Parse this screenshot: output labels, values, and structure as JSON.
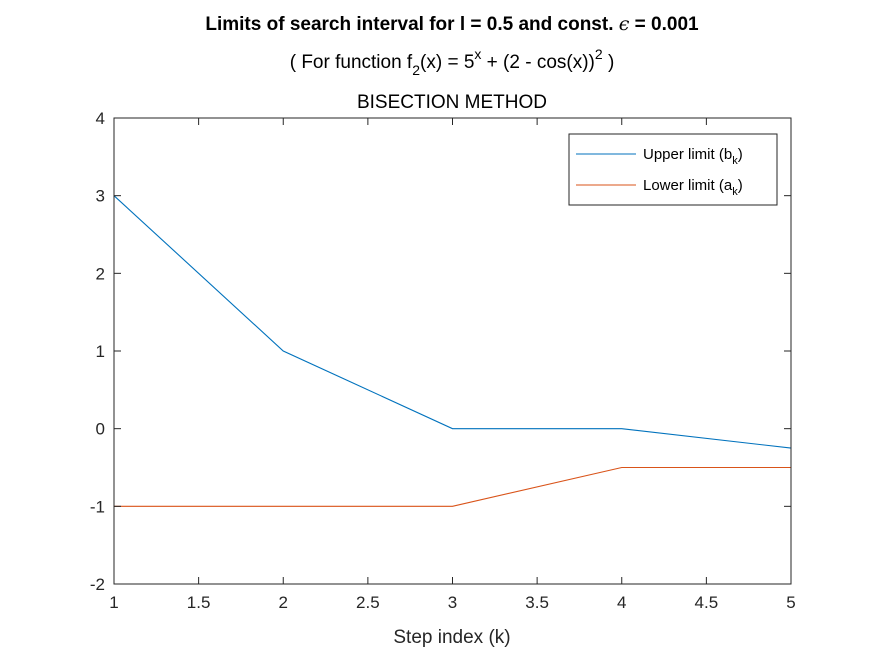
{
  "chart_data": {
    "type": "line",
    "title": {
      "line1_prefix": "Limits of search interval for l = 0.5 and const. ",
      "line1_symbol": "ϵ",
      "line1_suffix": " = 0.001",
      "line2_parts": {
        "open": "( For function f",
        "sub_2": "2",
        "mid1": "(x) = 5",
        "sup_x": "x",
        "mid2": " + (2 - cos(x))",
        "sup_2": "2",
        "close": " )"
      },
      "line3": "BISECTION METHOD"
    },
    "xlabel": "Step index (k)",
    "ylabel": "",
    "xlim": [
      1,
      5
    ],
    "ylim": [
      -2,
      4
    ],
    "xticks": [
      "1",
      "1.5",
      "2",
      "2.5",
      "3",
      "3.5",
      "4",
      "4.5",
      "5"
    ],
    "yticks": [
      "-2",
      "-1",
      "0",
      "1",
      "2",
      "3",
      "4"
    ],
    "grid": false,
    "legend_position": "top-right",
    "x": [
      1,
      2,
      3,
      4,
      5
    ],
    "series": [
      {
        "name": "Upper limit (b_k)",
        "legend_text": "Upper limit (b",
        "legend_sub": "k",
        "legend_close": ")",
        "color": "#0072BD",
        "values": [
          3,
          1,
          0,
          0,
          -0.25
        ]
      },
      {
        "name": "Lower limit (a_k)",
        "legend_text": "Lower limit (a",
        "legend_sub": "k",
        "legend_close": ")",
        "color": "#D95319",
        "values": [
          -1,
          -1,
          -1,
          -0.5,
          -0.5
        ]
      }
    ]
  }
}
